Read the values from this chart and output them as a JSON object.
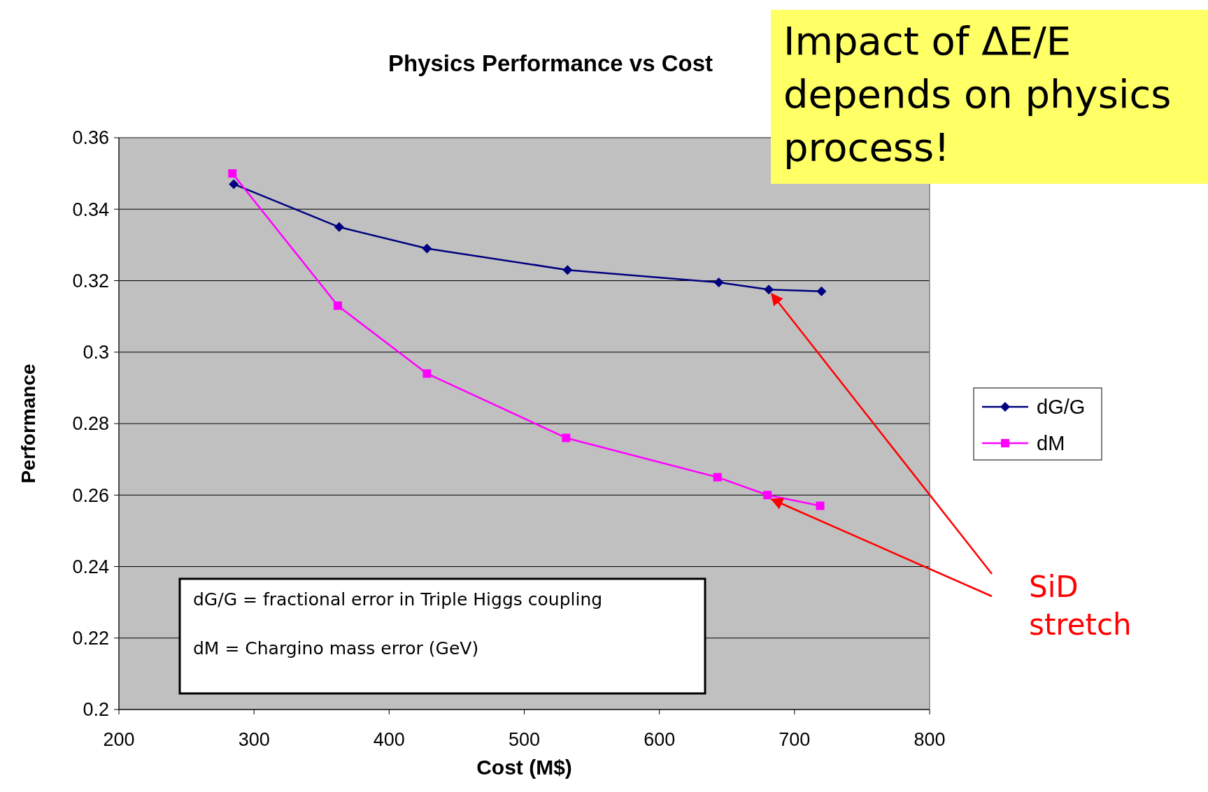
{
  "chart_data": {
    "type": "line",
    "title": "Physics Performance vs Cost",
    "xlabel": "Cost (M$)",
    "ylabel": "Performance",
    "xlim": [
      200,
      800
    ],
    "xticks": [
      200,
      300,
      400,
      500,
      600,
      700,
      800
    ],
    "ylim": [
      0.2,
      0.36
    ],
    "yticks": [
      0.2,
      0.22,
      0.24,
      0.26,
      {
        "value": 0.28,
        "label": "0.28"
      },
      {
        "value": 0.3,
        "label": "0.3"
      },
      0.32,
      0.34,
      0.36
    ],
    "grid": "y",
    "legend": "right",
    "line_style": "solid",
    "series": [
      {
        "name": "dG/G",
        "color": "#000080",
        "marker": "diamond",
        "x": [
          285,
          363,
          428,
          532,
          644,
          681,
          720
        ],
        "values": [
          0.347,
          0.335,
          0.329,
          0.323,
          0.3195,
          0.3175,
          0.317
        ]
      },
      {
        "name": "dM",
        "color": "#ff00ff",
        "marker": "square",
        "x": [
          284,
          362,
          428,
          531,
          643,
          680,
          719
        ],
        "values": [
          0.35,
          0.313,
          0.294,
          0.276,
          0.265,
          0.26,
          0.257
        ]
      }
    ],
    "annotations": [
      "Impact of ΔE/E depends on physics process!",
      "dG/G = fractional error in Triple Higgs coupling",
      "dM = Chargino mass error (GeV)",
      {
        "text": "SiD stretch",
        "x": 680,
        "y": 0.3175
      }
    ]
  }
}
